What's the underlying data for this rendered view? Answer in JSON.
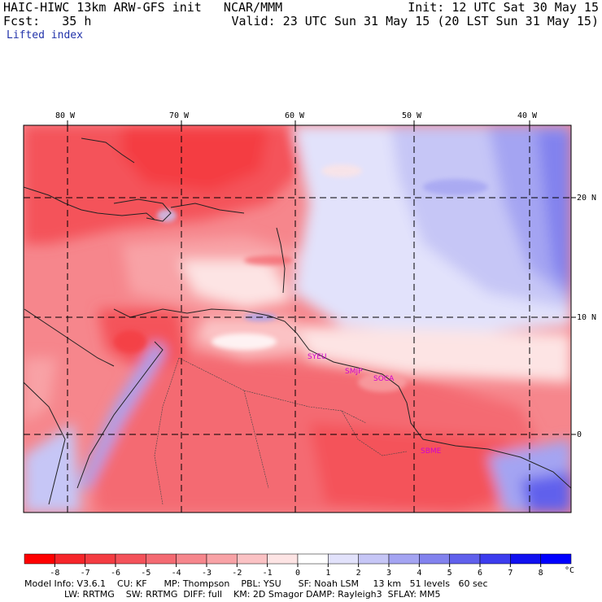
{
  "header": {
    "title": "HAIC-HIWC 13km ARW-GFS init   NCAR/MMM",
    "init": "Init: 12 UTC Sat 30 May 15",
    "fcst_label": "Fcst:",
    "fcst_value": "35 h",
    "valid": "Valid: 23 UTC Sun 31 May 15 (20 LST Sun 31 May 15)",
    "field": "Lifted index"
  },
  "map": {
    "lon_labels": [
      "80 W",
      "70 W",
      "60 W",
      "50 W",
      "40 W"
    ],
    "lat_labels": [
      "20 N",
      "10 N",
      "0"
    ],
    "stations": [
      "SYEU",
      "SMJP",
      "SOCA",
      "SBME"
    ]
  },
  "colorbar": {
    "ticks": [
      "-8",
      "-7",
      "-6",
      "-5",
      "-4",
      "-3",
      "-2",
      "-1",
      "0",
      "1",
      "2",
      "3",
      "4",
      "5",
      "6",
      "7",
      "8"
    ],
    "unit": "°C",
    "colors": [
      "#ff0000",
      "#f6252a",
      "#f43c42",
      "#f4525a",
      "#f46a72",
      "#f6868c",
      "#f8a2a6",
      "#fbc2c4",
      "#fde4e4",
      "#ffffff",
      "#e2e2fb",
      "#c6c6f6",
      "#a4a4f2",
      "#8282ee",
      "#6060ec",
      "#3c3cee",
      "#1010f0",
      "#0000ff"
    ]
  },
  "footer": {
    "line1": "Model Info: V3.6.1    CU: KF      MP: Thompson    PBL: YSU      SF: Noah LSM     13 km   51 levels   60 sec",
    "line2": "              LW: RRTMG    SW: RRTMG  DIFF: full    KM: 2D Smagor DAMP: Rayleigh3  SFLAY: MM5"
  }
}
